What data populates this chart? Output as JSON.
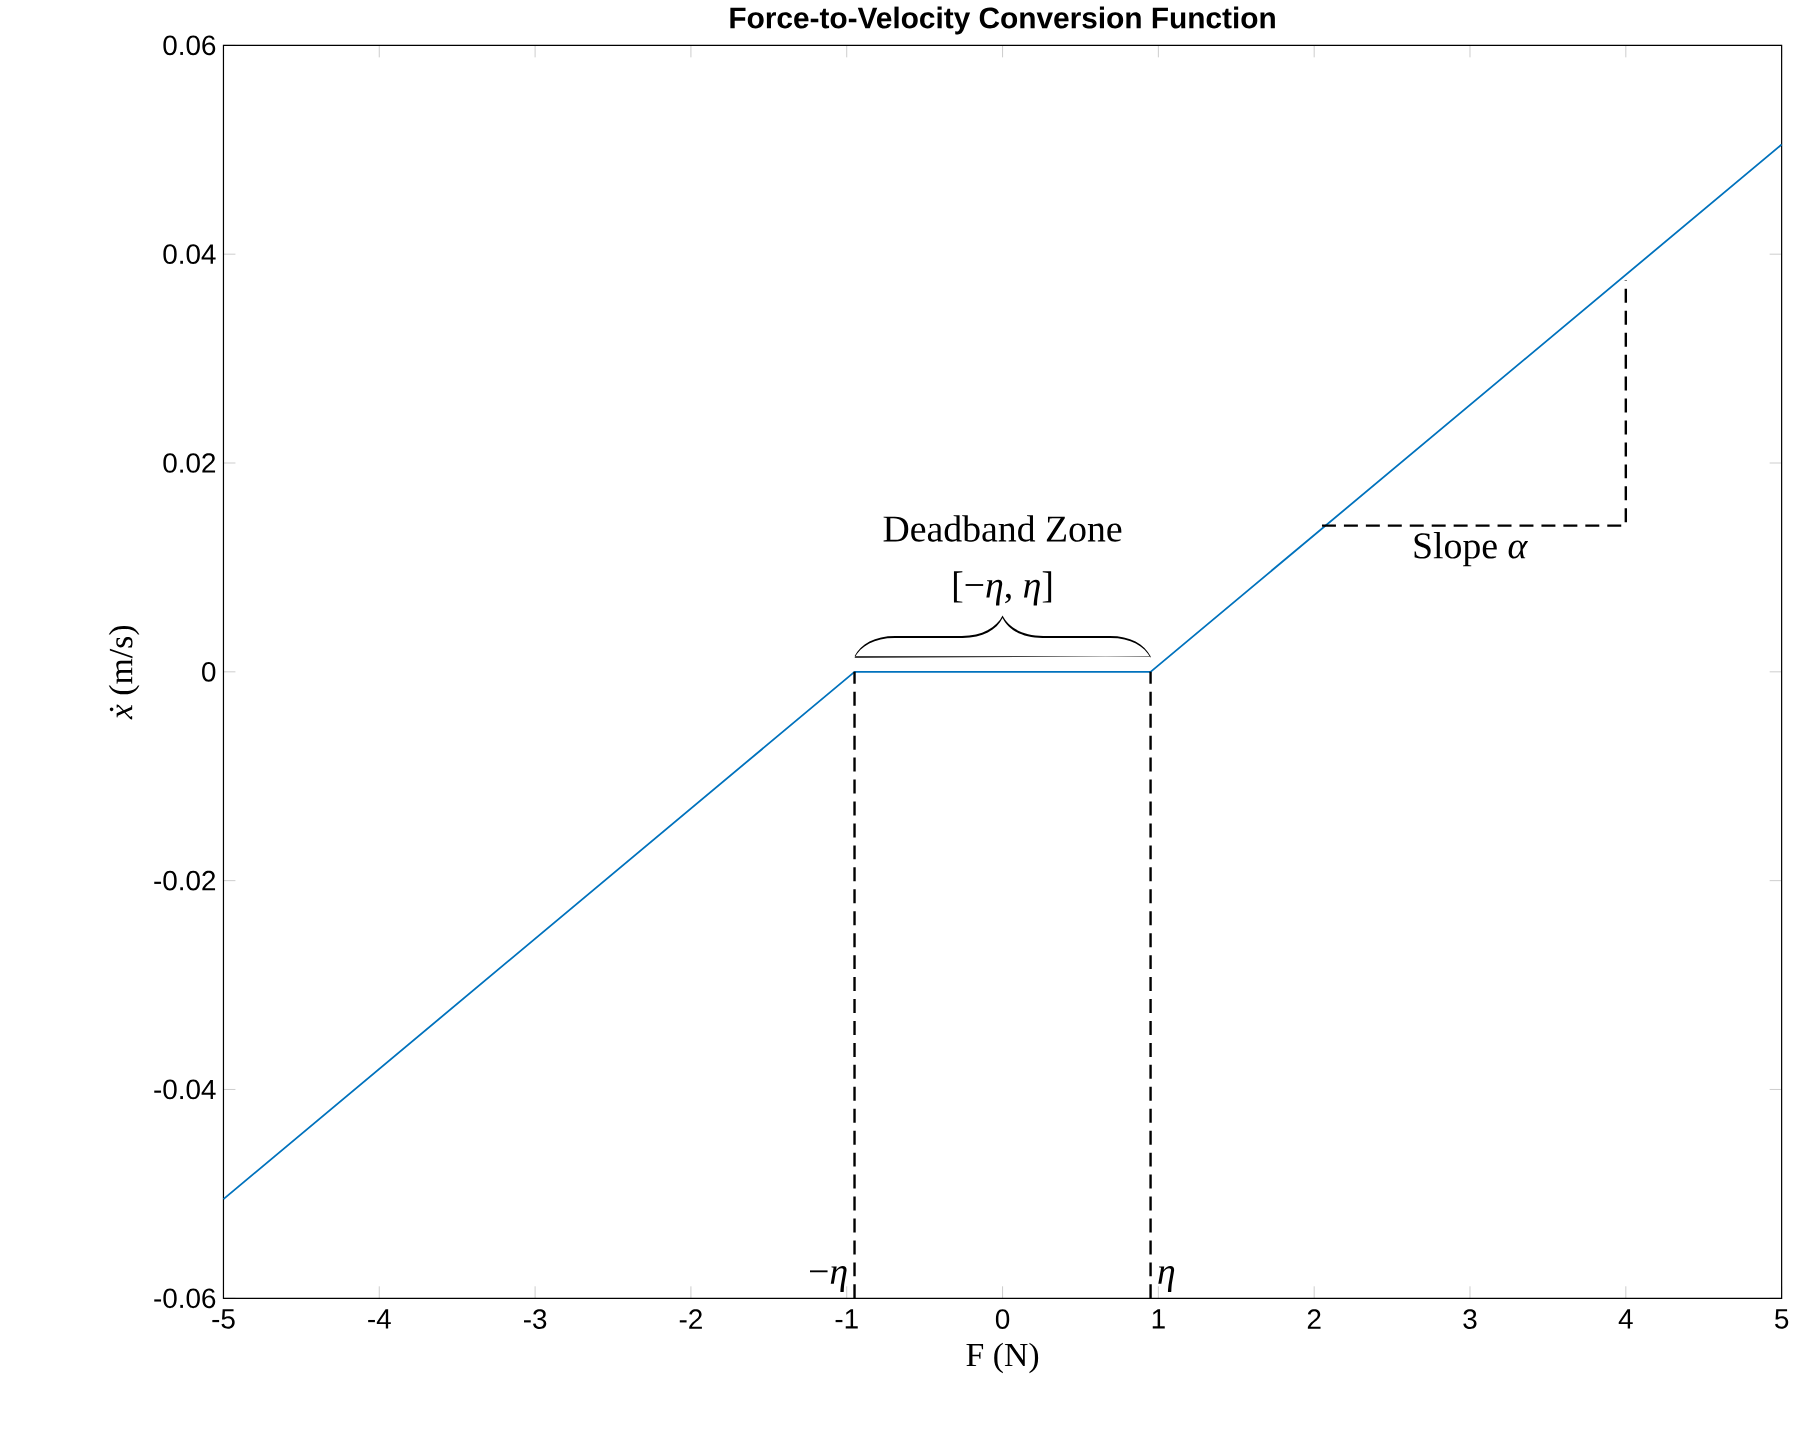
{
  "chart_data": {
    "type": "line",
    "title": "Force-to-Velocity Conversion Function",
    "xlabel": "F (N)",
    "ylabel": "*ẋ* (m/s)",
    "xlim": [
      -5,
      5
    ],
    "xticks": [
      -5,
      -4,
      -3,
      -2,
      -1,
      0,
      1,
      2,
      3,
      4,
      5
    ],
    "ylim": [
      -0.06,
      0.06
    ],
    "yticks": [
      -0.06,
      -0.04,
      -0.02,
      0,
      0.02,
      0.04,
      0.06
    ],
    "grid": false,
    "series": [
      {
        "color": "#0072bd",
        "x": [
          -5,
          -0.95,
          0.95,
          5
        ],
        "values": [
          -0.0505,
          0,
          0,
          0.0505
        ]
      },
      {
        "color": "#000000",
        "line_style": "dashed",
        "x": [
          -0.95,
          -0.95
        ],
        "values": [
          -0.06,
          0
        ]
      },
      {
        "color": "#000000",
        "line_style": "dashed",
        "x": [
          0.95,
          0.95
        ],
        "values": [
          -0.06,
          0
        ]
      },
      {
        "color": "#000000",
        "line_style": "dashed",
        "x": [
          2.05,
          4,
          4
        ],
        "values": [
          0.014,
          0.014,
          0.0375
        ]
      }
    ],
    "annotations": [
      "Deadband Zone",
      "[−*η*, *η*]",
      {
        "text": "−*η*",
        "x": -0.95,
        "y": -0.06
      },
      {
        "text": "*η*",
        "x": 0.95,
        "y": -0.06
      },
      {
        "text": "Slope *α*",
        "x": 3,
        "y": 0.014
      }
    ]
  }
}
